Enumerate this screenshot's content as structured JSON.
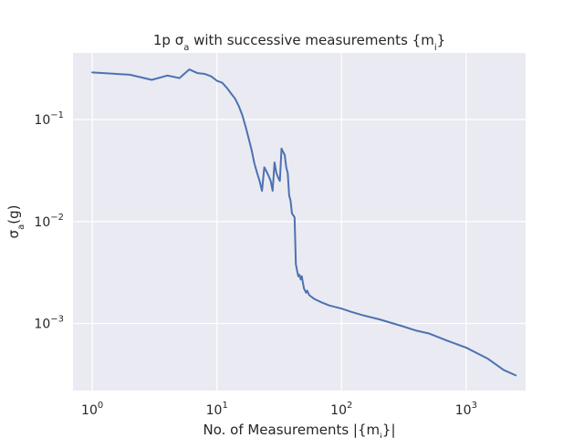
{
  "chart_data": {
    "type": "line",
    "title": "1p σ",
    "title_sub": "a",
    "title_rest": " with successive measurements {m",
    "title_sub2": "i",
    "title_end": "}",
    "xlabel": "No. of Measurements |{m",
    "xlabel_sub": "i",
    "xlabel_end": "}|",
    "ylabel": "σ",
    "ylabel_sub": "a",
    "ylabel_end": "(g)",
    "xscale": "log",
    "yscale": "log",
    "xlim": [
      0.7,
      3000
    ],
    "ylim": [
      0.00022,
      0.45
    ],
    "grid": true,
    "x_ticks": [
      {
        "base": "10",
        "exp": "0",
        "value": 1
      },
      {
        "base": "10",
        "exp": "1",
        "value": 10
      },
      {
        "base": "10",
        "exp": "2",
        "value": 100
      },
      {
        "base": "10",
        "exp": "3",
        "value": 1000
      }
    ],
    "y_ticks": [
      {
        "base": "10",
        "exp": "−1",
        "value": 0.1
      },
      {
        "base": "10",
        "exp": "−2",
        "value": 0.01
      },
      {
        "base": "10",
        "exp": "−3",
        "value": 0.001
      }
    ],
    "series": [
      {
        "color": "#4c72b0",
        "points": [
          [
            1,
            0.29
          ],
          [
            2,
            0.275
          ],
          [
            3,
            0.245
          ],
          [
            4,
            0.27
          ],
          [
            5,
            0.255
          ],
          [
            6,
            0.31
          ],
          [
            7,
            0.285
          ],
          [
            8,
            0.28
          ],
          [
            9,
            0.265
          ],
          [
            10,
            0.24
          ],
          [
            11,
            0.23
          ],
          [
            12,
            0.205
          ],
          [
            13,
            0.18
          ],
          [
            14,
            0.16
          ],
          [
            15,
            0.135
          ],
          [
            16,
            0.11
          ],
          [
            17,
            0.085
          ],
          [
            18,
            0.065
          ],
          [
            19,
            0.05
          ],
          [
            20,
            0.037
          ],
          [
            21,
            0.03
          ],
          [
            22,
            0.025
          ],
          [
            23,
            0.02
          ],
          [
            24,
            0.034
          ],
          [
            25,
            0.031
          ],
          [
            26,
            0.028
          ],
          [
            27,
            0.025
          ],
          [
            28,
            0.02
          ],
          [
            29,
            0.038
          ],
          [
            30,
            0.03
          ],
          [
            31,
            0.027
          ],
          [
            32,
            0.025
          ],
          [
            33,
            0.052
          ],
          [
            34,
            0.048
          ],
          [
            35,
            0.045
          ],
          [
            36,
            0.034
          ],
          [
            37,
            0.03
          ],
          [
            38,
            0.018
          ],
          [
            39,
            0.016
          ],
          [
            40,
            0.012
          ],
          [
            41,
            0.0115
          ],
          [
            42,
            0.011
          ],
          [
            43,
            0.0038
          ],
          [
            44,
            0.0033
          ],
          [
            45,
            0.0029
          ],
          [
            46,
            0.003
          ],
          [
            47,
            0.0027
          ],
          [
            48,
            0.0029
          ],
          [
            49,
            0.0025
          ],
          [
            50,
            0.0022
          ],
          [
            51,
            0.0021
          ],
          [
            52,
            0.002
          ],
          [
            53,
            0.0021
          ],
          [
            55,
            0.0019
          ],
          [
            60,
            0.00175
          ],
          [
            70,
            0.0016
          ],
          [
            80,
            0.0015
          ],
          [
            100,
            0.0014
          ],
          [
            120,
            0.0013
          ],
          [
            150,
            0.0012
          ],
          [
            200,
            0.0011
          ],
          [
            300,
            0.00095
          ],
          [
            400,
            0.00085
          ],
          [
            500,
            0.0008
          ],
          [
            700,
            0.00068
          ],
          [
            1000,
            0.00058
          ],
          [
            1500,
            0.00045
          ],
          [
            2000,
            0.00035
          ],
          [
            2500,
            0.00031
          ]
        ]
      }
    ]
  }
}
